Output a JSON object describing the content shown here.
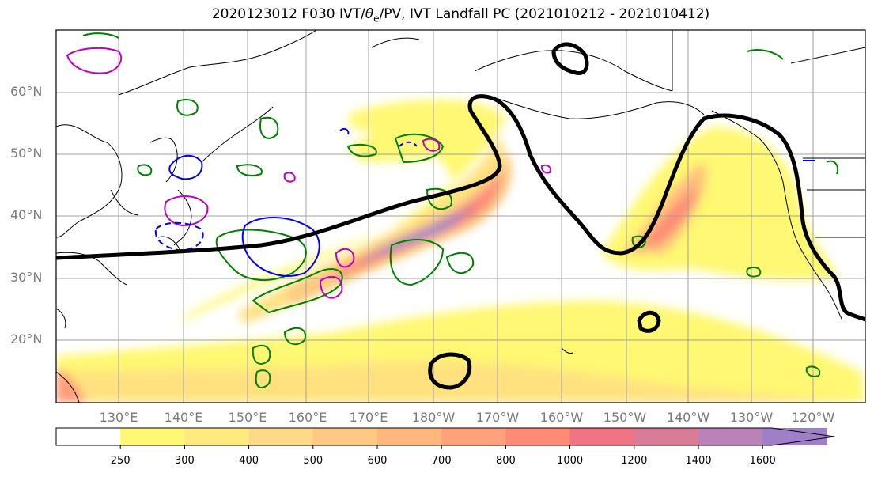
{
  "title": {
    "prefix": "2020123012 F030 IVT/",
    "theta_symbol": "θ",
    "theta_sub": "e",
    "suffix": "/PV, IVT Landfall PC (2021010212 - 2021010412)"
  },
  "latitude_labels": [
    "60°N",
    "50°N",
    "40°N",
    "30°N",
    "20°N"
  ],
  "longitude_labels": [
    "130°E",
    "140°E",
    "150°E",
    "160°E",
    "170°E",
    "180°W",
    "170°W",
    "160°W",
    "150°W",
    "140°W",
    "130°W",
    "120°W"
  ],
  "colorbar": {
    "ticks": [
      "250",
      "300",
      "400",
      "500",
      "600",
      "700",
      "800",
      "1000",
      "1200",
      "1400",
      "1600"
    ],
    "colors": [
      "#ffffff",
      "#fff872",
      "#ffea7f",
      "#ffd98a",
      "#ffc884",
      "#ffb77e",
      "#ffa17a",
      "#ff8a75",
      "#f07483",
      "#d87c98",
      "#b982b8",
      "#9f80c8"
    ],
    "extend": "max"
  },
  "colors": {
    "ivt_fill_low": "#fff872",
    "ivt_fill_high": "#9f80c8",
    "landfall_pc_contour": "#000000",
    "theta_e_contour": "#008000",
    "pv_contour": "#c000c0",
    "blue_contour": "#0000ff",
    "coastline": "#000000",
    "gridline": "#a0a0a0"
  }
}
